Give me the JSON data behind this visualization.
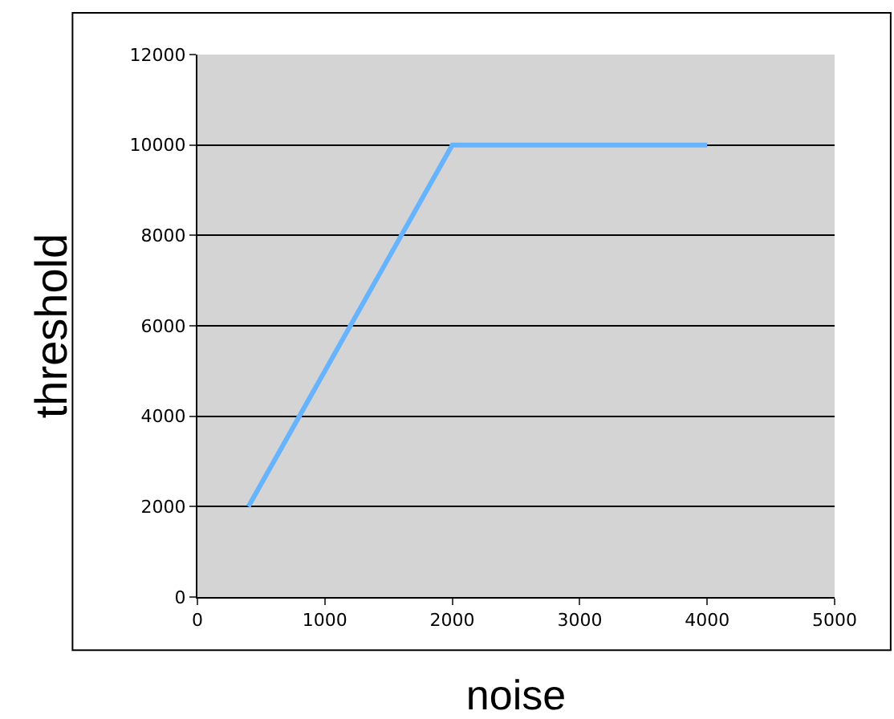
{
  "chart_data": {
    "type": "line",
    "xlabel": "noise",
    "ylabel": "threshold",
    "x": [
      400,
      2000,
      4000
    ],
    "series": [
      {
        "color": "#66b3ff",
        "values": [
          2000,
          10000,
          10000
        ]
      }
    ],
    "xlim": [
      0,
      5000
    ],
    "xticks": [
      0,
      1000,
      2000,
      3000,
      4000,
      5000
    ],
    "ylim": [
      0,
      12000
    ],
    "yticks": [
      0,
      2000,
      4000,
      6000,
      8000,
      10000,
      12000
    ],
    "grid": "y",
    "marker": "none",
    "line_style": "solid"
  }
}
